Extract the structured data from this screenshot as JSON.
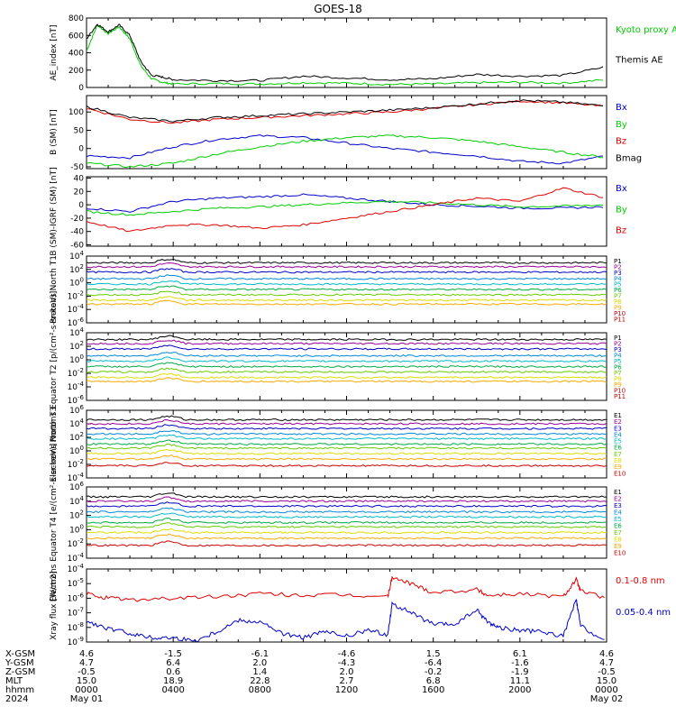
{
  "page": {
    "title": "GOES-18"
  },
  "bottom_axis": {
    "rows": [
      {
        "label": "X-GSM",
        "values": [
          "4.6",
          "-1.5",
          "-6.1",
          "-4.6",
          "1.5",
          "6.1",
          "4.6"
        ]
      },
      {
        "label": "Y-GSM",
        "values": [
          "4.7",
          "6.4",
          "2.0",
          "-4.3",
          "-6.4",
          "-1.6",
          "4.7"
        ]
      },
      {
        "label": "Z-GSM",
        "values": [
          "-0.5",
          "0.6",
          "1.4",
          "2.0",
          "-0.2",
          "-1.9",
          "-0.5"
        ]
      },
      {
        "label": "MLT",
        "values": [
          "15.0",
          "18.9",
          "22.8",
          "2.7",
          "6.8",
          "11.1",
          "15.0"
        ]
      },
      {
        "label": "hhmm",
        "values": [
          "0000",
          "0400",
          "0800",
          "1200",
          "1600",
          "2000",
          "0000"
        ]
      },
      {
        "label": "2024",
        "values": [
          "May 01",
          "",
          "",
          "",
          "",
          "",
          "May 02"
        ]
      }
    ]
  },
  "colors": {
    "black": "#000000",
    "red": "#e00000",
    "green": "#00cc00",
    "blue": "#0000cc"
  },
  "chart_data": [
    {
      "type": "line",
      "ylabel": "AE_index [nT]",
      "ylim": [
        0,
        800
      ],
      "yticks": [
        "800",
        "600",
        "400",
        "200",
        "0"
      ],
      "legend": [
        {
          "name": "Kyoto proxy AE",
          "color": "#00cc00"
        },
        {
          "name": "Themis AE",
          "color": "#000000"
        }
      ],
      "series": [
        {
          "name": "Kyoto proxy AE",
          "color": "#00cc00",
          "x": [
            0,
            0.5,
            1,
            1.5,
            2,
            2.5,
            3,
            3.5,
            4,
            6,
            8,
            10,
            12,
            14,
            16,
            18,
            20,
            22,
            24
          ],
          "y": [
            420,
            720,
            620,
            700,
            560,
            250,
            100,
            60,
            40,
            45,
            40,
            55,
            50,
            35,
            40,
            55,
            60,
            50,
            90
          ]
        },
        {
          "name": "Themis AE",
          "color": "#000000",
          "x": [
            0,
            0.5,
            1,
            1.5,
            2,
            2.5,
            3,
            3.5,
            4,
            6,
            8,
            10,
            12,
            14,
            16,
            18,
            20,
            22,
            24
          ],
          "y": [
            560,
            730,
            640,
            720,
            600,
            300,
            140,
            120,
            90,
            80,
            80,
            130,
            110,
            90,
            100,
            150,
            130,
            140,
            240
          ]
        }
      ]
    },
    {
      "type": "line",
      "ylabel": "B (SM) [nT]",
      "ylim": [
        -55,
        145
      ],
      "yticks": [
        "100",
        "50",
        "0",
        "-50"
      ],
      "legend": [
        {
          "name": "Bx",
          "color": "#0000cc"
        },
        {
          "name": "By",
          "color": "#00cc00"
        },
        {
          "name": "Bz",
          "color": "#e00000"
        },
        {
          "name": "Bmag",
          "color": "#000000"
        }
      ],
      "series": [
        {
          "name": "Bx",
          "color": "#0000cc",
          "x": [
            0,
            2,
            4,
            6,
            8,
            10,
            12,
            14,
            16,
            18,
            20,
            22,
            24
          ],
          "y": [
            -20,
            -25,
            5,
            25,
            35,
            30,
            15,
            0,
            -10,
            -20,
            -35,
            -40,
            -20
          ]
        },
        {
          "name": "By",
          "color": "#00cc00",
          "x": [
            0,
            2,
            4,
            6,
            8,
            10,
            12,
            14,
            16,
            18,
            20,
            22,
            24
          ],
          "y": [
            -40,
            -50,
            -40,
            -15,
            5,
            20,
            30,
            35,
            30,
            20,
            5,
            -10,
            -25
          ]
        },
        {
          "name": "Bz",
          "color": "#e00000",
          "x": [
            0,
            2,
            4,
            6,
            8,
            10,
            12,
            14,
            16,
            18,
            20,
            22,
            24
          ],
          "y": [
            110,
            80,
            70,
            80,
            85,
            90,
            95,
            100,
            110,
            120,
            130,
            125,
            115
          ]
        },
        {
          "name": "Bmag",
          "color": "#000000",
          "x": [
            0,
            2,
            4,
            6,
            8,
            10,
            12,
            14,
            16,
            18,
            20,
            22,
            24
          ],
          "y": [
            115,
            85,
            75,
            85,
            90,
            95,
            100,
            105,
            112,
            122,
            132,
            127,
            116
          ]
        }
      ]
    },
    {
      "type": "line",
      "ylabel": "B (SM)-IGRF (SM) [nT]",
      "ylim": [
        -62,
        42
      ],
      "yticks": [
        "40",
        "20",
        "0",
        "-20",
        "-40",
        "-60"
      ],
      "legend": [
        {
          "name": "Bx",
          "color": "#0000cc"
        },
        {
          "name": "By",
          "color": "#00cc00"
        },
        {
          "name": "Bz",
          "color": "#e00000"
        }
      ],
      "series": [
        {
          "name": "Bx",
          "color": "#0000cc",
          "x": [
            0,
            2,
            4,
            6,
            8,
            10,
            12,
            14,
            16,
            18,
            20,
            22,
            24
          ],
          "y": [
            -5,
            -10,
            5,
            10,
            12,
            15,
            10,
            5,
            0,
            -2,
            -5,
            -5,
            -3
          ]
        },
        {
          "name": "By",
          "color": "#00cc00",
          "x": [
            0,
            2,
            4,
            6,
            8,
            10,
            12,
            14,
            16,
            18,
            20,
            22,
            24
          ],
          "y": [
            -10,
            -15,
            -10,
            -5,
            -3,
            0,
            3,
            5,
            3,
            0,
            -3,
            -2,
            0
          ]
        },
        {
          "name": "Bz",
          "color": "#e00000",
          "x": [
            0,
            2,
            4,
            6,
            8,
            10,
            12,
            14,
            16,
            18,
            20,
            22,
            24
          ],
          "y": [
            -25,
            -40,
            -30,
            -30,
            -35,
            -30,
            -20,
            -10,
            0,
            10,
            5,
            25,
            10
          ]
        }
      ]
    },
    {
      "type": "line",
      "ylabel": "Protons North T1",
      "yscale": "log",
      "ylim_exp": [
        -6,
        4
      ],
      "yticks": [
        "10^4",
        "10^2",
        "10^0",
        "10^-2",
        "10^-4",
        "10^-6"
      ],
      "legend": [
        "P1",
        "P2",
        "P3",
        "P4",
        "P5",
        "P6",
        "P7",
        "P8",
        "P9",
        "P10",
        "P11"
      ],
      "series": [
        {
          "name": "P1",
          "color": "#000000",
          "log_level": 3.0
        },
        {
          "name": "P2",
          "color": "#990099",
          "log_level": 2.4
        },
        {
          "name": "P3",
          "color": "#0000cc",
          "log_level": 1.6
        },
        {
          "name": "P4",
          "color": "#0088dd",
          "log_level": 0.6
        },
        {
          "name": "P5",
          "color": "#00bbcc",
          "log_level": -0.2
        },
        {
          "name": "P6",
          "color": "#00aa44",
          "log_level": -1.0
        },
        {
          "name": "P7",
          "color": "#66cc00",
          "log_level": -1.8
        },
        {
          "name": "P8",
          "color": "#dddd00",
          "log_level": -2.6
        },
        {
          "name": "P9",
          "color": "#ffaa00",
          "log_level": -3.2
        }
      ]
    },
    {
      "type": "line",
      "ylabel": "Protons Equator T2 [p/(cm²-s-sr-keV)]",
      "yscale": "log",
      "ylim_exp": [
        -6,
        4
      ],
      "yticks": [
        "10^4",
        "10^2",
        "10^0",
        "10^-2",
        "10^-4",
        "10^-6"
      ],
      "legend": [
        "P1",
        "P2",
        "P3",
        "P4",
        "P5",
        "P6",
        "P7",
        "P8",
        "P9",
        "P10",
        "P11"
      ],
      "series": [
        {
          "name": "P1",
          "color": "#000000",
          "log_level": 3.0
        },
        {
          "name": "P2",
          "color": "#990099",
          "log_level": 2.4
        },
        {
          "name": "P3",
          "color": "#0000cc",
          "log_level": 1.6
        },
        {
          "name": "P4",
          "color": "#0088dd",
          "log_level": 0.6
        },
        {
          "name": "P5",
          "color": "#00bbcc",
          "log_level": -0.2
        },
        {
          "name": "P6",
          "color": "#00aa44",
          "log_level": -1.0
        },
        {
          "name": "P7",
          "color": "#66cc00",
          "log_level": -1.8
        },
        {
          "name": "P8",
          "color": "#dddd00",
          "log_level": -2.6
        },
        {
          "name": "P9",
          "color": "#ffaa00",
          "log_level": -3.2
        }
      ]
    },
    {
      "type": "line",
      "ylabel": "Electrons North T3",
      "yscale": "log",
      "ylim_exp": [
        -4,
        6
      ],
      "yticks": [
        "10^6",
        "10^4",
        "10^2",
        "10^0",
        "10^-2",
        "10^-4"
      ],
      "legend": [
        "E1",
        "E2",
        "E3",
        "E4",
        "E5",
        "E6",
        "E7",
        "E8",
        "E9",
        "E10"
      ],
      "series": [
        {
          "name": "E1",
          "color": "#000000",
          "log_level": 4.6
        },
        {
          "name": "E2",
          "color": "#990099",
          "log_level": 4.0
        },
        {
          "name": "E3",
          "color": "#0000cc",
          "log_level": 3.3
        },
        {
          "name": "E4",
          "color": "#0088dd",
          "log_level": 2.5
        },
        {
          "name": "E5",
          "color": "#00bbcc",
          "log_level": 1.8
        },
        {
          "name": "E6",
          "color": "#00aa44",
          "log_level": 1.0
        },
        {
          "name": "E7",
          "color": "#66cc00",
          "log_level": 0.4
        },
        {
          "name": "E8",
          "color": "#dddd00",
          "log_level": -0.4
        },
        {
          "name": "E9",
          "color": "#ffaa00",
          "log_level": -1.2
        },
        {
          "name": "E10",
          "color": "#cc0000",
          "log_level": -2.2
        }
      ]
    },
    {
      "type": "line",
      "ylabel": "Electrons Equator T4 [e/(cm²-s-sr-keV)]",
      "yscale": "log",
      "ylim_exp": [
        -4,
        6
      ],
      "yticks": [
        "10^6",
        "10^4",
        "10^2",
        "10^0",
        "10^-2",
        "10^-4"
      ],
      "legend": [
        "E1",
        "E2",
        "E3",
        "E4",
        "E5",
        "E6",
        "E7",
        "E8",
        "E9",
        "E10"
      ],
      "series": [
        {
          "name": "E1",
          "color": "#000000",
          "log_level": 4.6
        },
        {
          "name": "E2",
          "color": "#990099",
          "log_level": 4.0
        },
        {
          "name": "E3",
          "color": "#0000cc",
          "log_level": 3.3
        },
        {
          "name": "E4",
          "color": "#0088dd",
          "log_level": 2.5
        },
        {
          "name": "E5",
          "color": "#00bbcc",
          "log_level": 1.8
        },
        {
          "name": "E6",
          "color": "#00aa44",
          "log_level": 1.0
        },
        {
          "name": "E7",
          "color": "#66cc00",
          "log_level": 0.4
        },
        {
          "name": "E8",
          "color": "#dddd00",
          "log_level": -0.4
        },
        {
          "name": "E9",
          "color": "#ffaa00",
          "log_level": -1.2
        },
        {
          "name": "E10",
          "color": "#cc0000",
          "log_level": -2.2
        }
      ]
    },
    {
      "type": "line",
      "ylabel": "Xray flux [W/m2]",
      "yscale": "log",
      "ylim_exp": [
        -9,
        -4
      ],
      "yticks": [
        "10^-4",
        "10^-5",
        "10^-6",
        "10^-7",
        "10^-8",
        "10^-9"
      ],
      "legend": [
        {
          "name": "0.1-0.8 nm",
          "color": "#e00000"
        },
        {
          "name": "0.05-0.4 nm",
          "color": "#0000cc"
        }
      ],
      "series": [
        {
          "name": "0.1-0.8 nm",
          "color": "#e00000",
          "x": [
            0,
            1,
            2,
            4,
            6,
            8,
            10,
            12,
            13.9,
            14.1,
            15,
            16,
            18,
            18.5,
            20,
            22,
            22.6,
            22.8,
            24
          ],
          "y_exp": [
            -5.7,
            -6.0,
            -6.1,
            -6.0,
            -5.9,
            -5.7,
            -5.8,
            -5.8,
            -5.9,
            -4.6,
            -5.0,
            -5.6,
            -5.4,
            -5.8,
            -5.7,
            -5.9,
            -4.7,
            -5.5,
            -6.0
          ]
        },
        {
          "name": "0.05-0.4 nm",
          "color": "#0000cc",
          "x": [
            0,
            1,
            2,
            3,
            4,
            5,
            6,
            7,
            8,
            9,
            10,
            11,
            12,
            13,
            13.9,
            14.1,
            15,
            16,
            17,
            18,
            18.5,
            19,
            20,
            21,
            22,
            22.6,
            22.8,
            24
          ],
          "y_exp": [
            -7.6,
            -8.1,
            -8.4,
            -8.7,
            -8.7,
            -8.9,
            -8.3,
            -7.5,
            -7.6,
            -8.4,
            -8.7,
            -8.3,
            -8.6,
            -8.2,
            -8.5,
            -6.4,
            -7.0,
            -7.8,
            -7.8,
            -6.8,
            -7.6,
            -8.0,
            -8.2,
            -8.3,
            -8.6,
            -6.1,
            -7.9,
            -9.0
          ]
        }
      ]
    }
  ]
}
